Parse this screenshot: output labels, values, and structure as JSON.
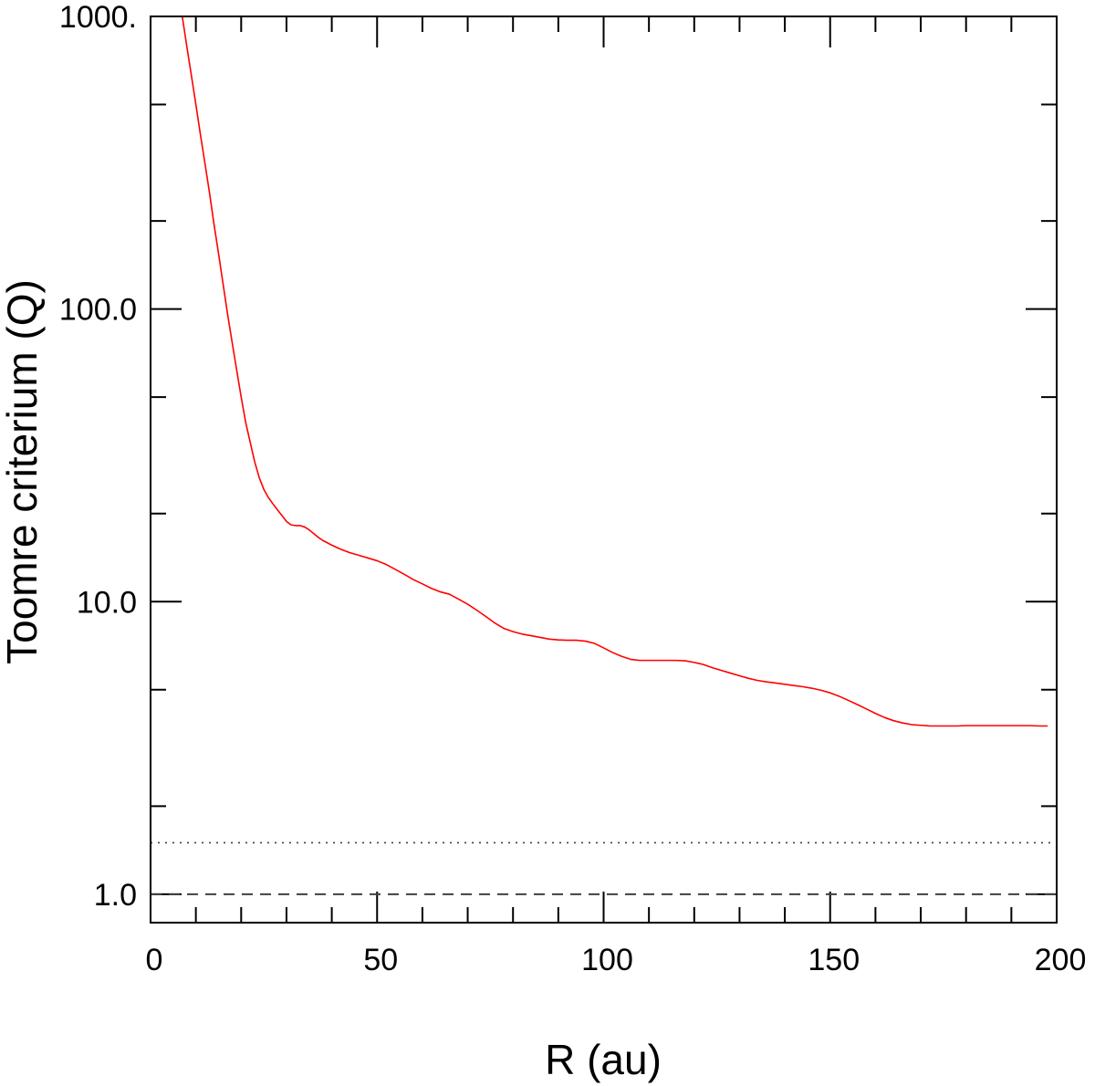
{
  "chart_data": {
    "type": "line",
    "title": "",
    "xlabel": "R (au)",
    "ylabel": "Toomre criterium (Q)",
    "x_range": [
      0,
      200
    ],
    "y_range": [
      0.8,
      1000
    ],
    "y_scale": "log",
    "grid": false,
    "x_ticks": [
      {
        "value": 0,
        "label": "0"
      },
      {
        "value": 50,
        "label": "50"
      },
      {
        "value": 100,
        "label": "100"
      },
      {
        "value": 150,
        "label": "150"
      },
      {
        "value": 200,
        "label": "200"
      }
    ],
    "x_minor_ticks": [
      10,
      20,
      30,
      40,
      60,
      70,
      80,
      90,
      110,
      120,
      130,
      140,
      160,
      170,
      180,
      190
    ],
    "y_ticks": [
      {
        "value": 1,
        "label": "1.0"
      },
      {
        "value": 10,
        "label": "10.0"
      },
      {
        "value": 100,
        "label": "100.0"
      },
      {
        "value": 1000,
        "label": "1000."
      }
    ],
    "y_minor_ticks": [
      2,
      5,
      20,
      50,
      200,
      500
    ],
    "series": [
      {
        "color": "#ff0000",
        "style": "solid",
        "x": [
          7,
          8,
          9,
          10,
          11,
          12,
          13,
          14,
          15,
          16,
          17,
          18,
          19,
          20,
          21,
          22,
          23,
          24,
          25,
          26,
          27,
          28,
          29,
          30,
          31,
          32,
          33,
          34,
          35,
          36,
          37,
          38,
          40,
          42,
          44,
          46,
          48,
          50,
          52,
          54,
          56,
          58,
          60,
          62,
          64,
          66,
          68,
          70,
          72,
          74,
          76,
          78,
          80,
          82,
          84,
          86,
          88,
          90,
          92,
          94,
          96,
          98,
          100,
          102,
          104,
          106,
          108,
          110,
          112,
          114,
          116,
          118,
          120,
          122,
          124,
          126,
          128,
          130,
          132,
          134,
          136,
          138,
          140,
          142,
          144,
          146,
          148,
          150,
          152,
          154,
          156,
          158,
          160,
          162,
          164,
          166,
          168,
          170,
          172,
          174,
          176,
          178,
          180,
          182,
          184,
          186,
          188,
          190,
          192,
          194,
          196,
          198
        ],
        "y": [
          1000,
          790,
          630,
          500,
          395,
          315,
          250,
          195,
          155,
          122,
          96,
          77,
          62,
          50,
          41,
          35,
          30,
          26.5,
          24.2,
          22.7,
          21.6,
          20.6,
          19.7,
          18.8,
          18.3,
          18.2,
          18.2,
          18.0,
          17.6,
          17.1,
          16.6,
          16.2,
          15.6,
          15.1,
          14.7,
          14.4,
          14.1,
          13.8,
          13.4,
          12.9,
          12.4,
          11.9,
          11.5,
          11.1,
          10.8,
          10.6,
          10.2,
          9.8,
          9.35,
          8.9,
          8.45,
          8.1,
          7.9,
          7.75,
          7.65,
          7.55,
          7.45,
          7.4,
          7.38,
          7.38,
          7.33,
          7.2,
          6.95,
          6.7,
          6.5,
          6.35,
          6.3,
          6.3,
          6.3,
          6.3,
          6.3,
          6.28,
          6.2,
          6.1,
          5.95,
          5.82,
          5.7,
          5.58,
          5.47,
          5.38,
          5.32,
          5.27,
          5.22,
          5.17,
          5.12,
          5.06,
          4.98,
          4.88,
          4.75,
          4.6,
          4.45,
          4.3,
          4.15,
          4.02,
          3.92,
          3.85,
          3.8,
          3.78,
          3.76,
          3.76,
          3.76,
          3.76,
          3.77,
          3.77,
          3.77,
          3.77,
          3.77,
          3.77,
          3.77,
          3.77,
          3.76,
          3.76
        ]
      },
      {
        "color": "#404040",
        "style": "dotted",
        "x": [
          0,
          200
        ],
        "y": [
          1.5,
          1.5
        ]
      },
      {
        "color": "#404040",
        "style": "dashed",
        "x": [
          0,
          200
        ],
        "y": [
          1.0,
          1.0
        ]
      }
    ]
  }
}
